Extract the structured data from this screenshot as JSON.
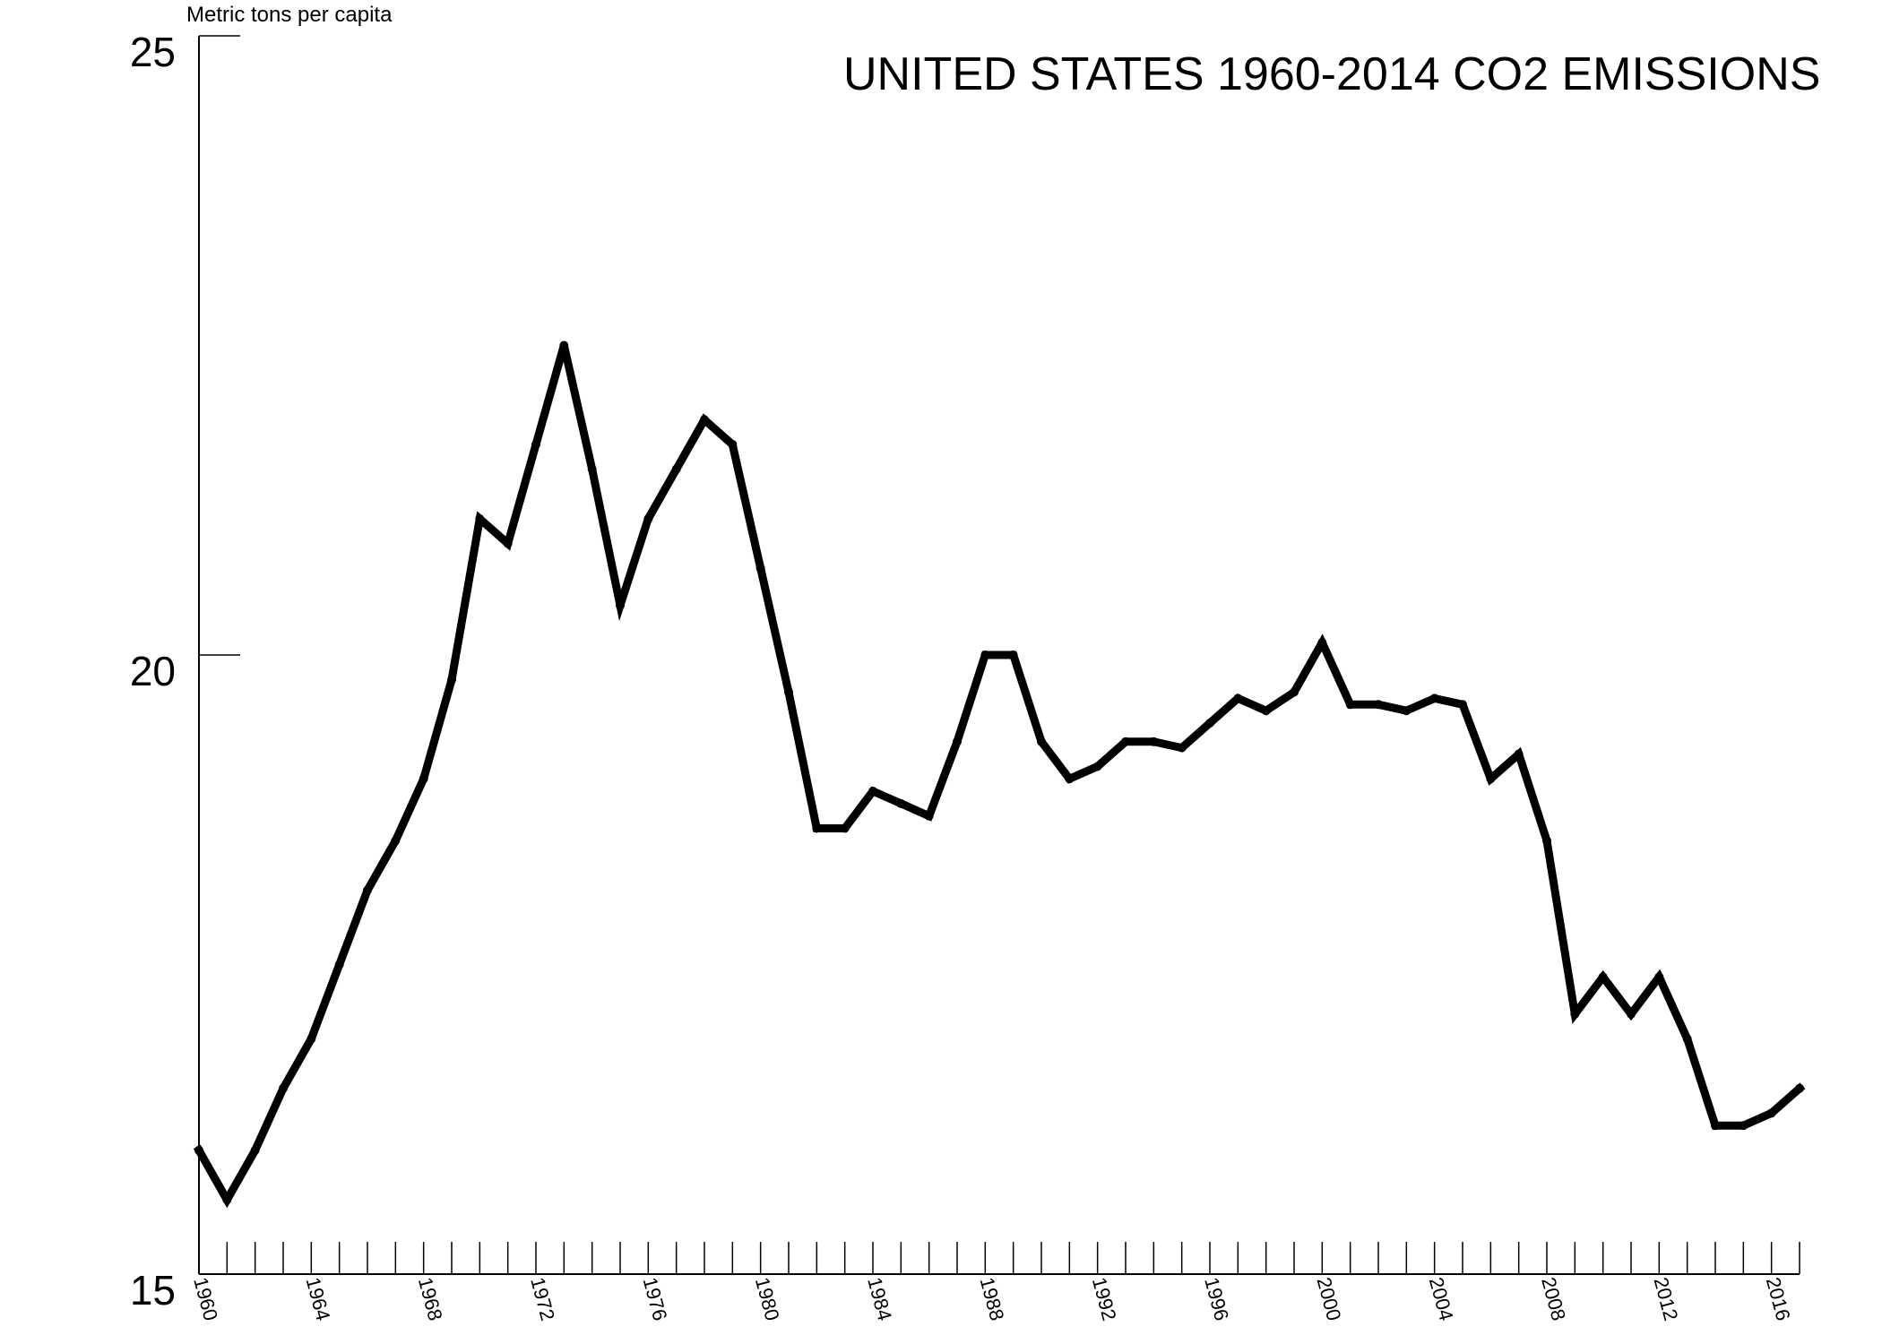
{
  "chart_data": {
    "type": "line",
    "title": "UNITED STATES 1960-2014 CO2 EMISSIONS",
    "ylabel": "Metric tons per capita",
    "xlabel": "",
    "ylim": [
      15,
      25
    ],
    "xlim": [
      1960,
      2017
    ],
    "y_ticks": [
      15,
      20,
      25
    ],
    "x_tick_labels": [
      1960,
      1964,
      1968,
      1972,
      1976,
      1980,
      1984,
      1988,
      1992,
      1996,
      2000,
      2004,
      2008,
      2012,
      2016
    ],
    "grid": false,
    "x": [
      1960,
      1961,
      1962,
      1963,
      1964,
      1965,
      1966,
      1967,
      1968,
      1969,
      1970,
      1971,
      1972,
      1973,
      1974,
      1975,
      1976,
      1977,
      1978,
      1979,
      1980,
      1981,
      1982,
      1983,
      1984,
      1985,
      1986,
      1987,
      1988,
      1989,
      1990,
      1991,
      1992,
      1993,
      1994,
      1995,
      1996,
      1997,
      1998,
      1999,
      2000,
      2001,
      2002,
      2003,
      2004,
      2005,
      2006,
      2007,
      2008,
      2009,
      2010,
      2011,
      2012,
      2013,
      2014,
      2015,
      2016,
      2017
    ],
    "values": [
      16.0,
      15.6,
      16.0,
      16.5,
      16.9,
      17.5,
      18.1,
      18.5,
      19.0,
      19.8,
      21.1,
      20.9,
      21.7,
      22.5,
      21.5,
      20.4,
      21.1,
      21.5,
      21.9,
      21.7,
      20.7,
      19.7,
      18.6,
      18.6,
      18.9,
      18.8,
      18.7,
      19.3,
      20.0,
      20.0,
      19.3,
      19.0,
      19.1,
      19.3,
      19.3,
      19.25,
      19.45,
      19.65,
      19.55,
      19.7,
      20.1,
      19.6,
      19.6,
      19.55,
      19.65,
      19.6,
      19.0,
      19.2,
      18.5,
      17.1,
      17.4,
      17.1,
      17.4,
      16.9,
      16.2,
      16.2,
      16.3,
      16.5
    ]
  }
}
